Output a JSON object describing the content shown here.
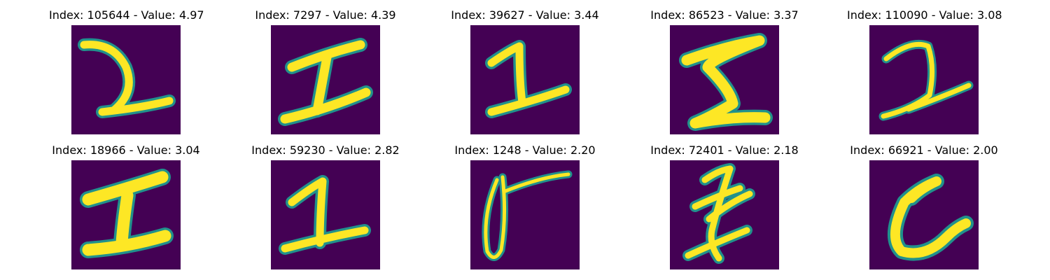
{
  "figure": {
    "colormap": "viridis",
    "background_color": "#440154",
    "stroke_color": "#fde725",
    "edge_color": "#21918c",
    "panels": [
      {
        "title": "Index: 105644 - Value: 4.97",
        "digit_shape": "cursive-2"
      },
      {
        "title": "Index: 7297 - Value: 4.39",
        "digit_shape": "serif-1"
      },
      {
        "title": "Index: 39627 - Value: 3.44",
        "digit_shape": "1-with-long-base"
      },
      {
        "title": "Index: 86523 - Value: 3.37",
        "digit_shape": "sigma-shaped-stroke"
      },
      {
        "title": "Index: 110090 - Value: 3.08",
        "digit_shape": "cursive-2-with-slash"
      },
      {
        "title": "Index: 18966 - Value: 3.04",
        "digit_shape": "serif-1"
      },
      {
        "title": "Index: 59230 - Value: 2.82",
        "digit_shape": "1-with-base"
      },
      {
        "title": "Index: 1248 - Value: 2.20",
        "digit_shape": "0-with-stroke"
      },
      {
        "title": "Index: 72401 - Value: 2.18",
        "digit_shape": "crossed-1"
      },
      {
        "title": "Index: 66921 - Value: 2.00",
        "digit_shape": "curved-6-like"
      }
    ]
  }
}
